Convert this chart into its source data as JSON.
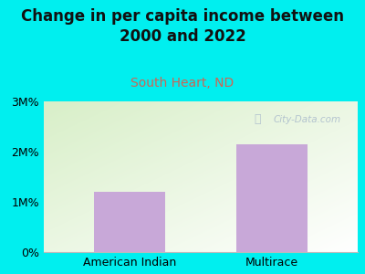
{
  "title": "Change in per capita income between\n2000 and 2022",
  "subtitle": "South Heart, ND",
  "categories": [
    "American Indian",
    "Multirace"
  ],
  "values": [
    1.2,
    2.15
  ],
  "bar_color": "#c8a8d8",
  "background_color": "#00efef",
  "plot_bg_top_left": "#d8efc8",
  "plot_bg_bottom_right": "#ffffff",
  "yticks": [
    0,
    1,
    2,
    3
  ],
  "ytick_labels": [
    "0%",
    "1M%",
    "2M%",
    "3M%"
  ],
  "ylim": [
    0,
    3
  ],
  "title_fontsize": 12,
  "subtitle_fontsize": 10,
  "subtitle_color": "#cc6655",
  "watermark_text": "City-Data.com",
  "watermark_color": "#aabbcc",
  "tick_fontsize": 9,
  "xlabel_fontsize": 9
}
